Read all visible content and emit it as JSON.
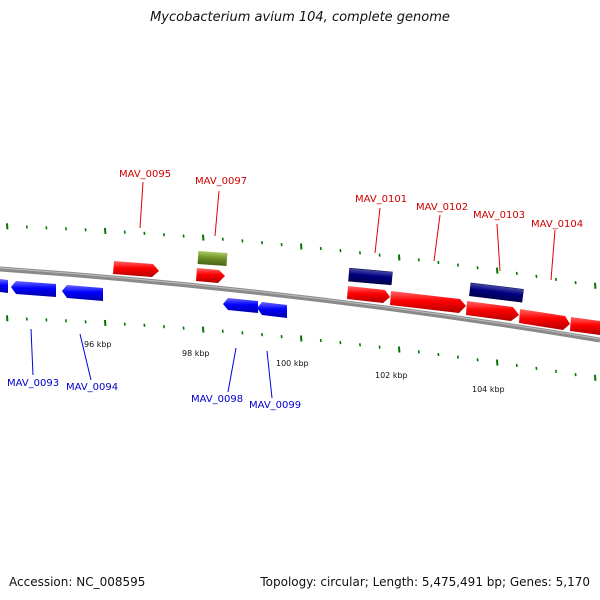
{
  "title": "Mycobacterium avium 104, complete genome",
  "footer": {
    "accession": "Accession: NC_008595",
    "summary": "Topology: circular; Length: 5,475,491 bp; Genes: 5,170"
  },
  "colors": {
    "forward_gene": "#ff0000",
    "reverse_gene": "#0000ff",
    "dark_feature": "#000080",
    "olive_feature": "#6b8e23",
    "backbone": "#808080",
    "ticks": "#007700",
    "forward_label": "#cc0000",
    "reverse_label": "#0000cc"
  },
  "scale_labels": [
    "96 kbp",
    "98 kbp",
    "100 kbp",
    "102 kbp",
    "104 kbp"
  ],
  "forward_labels": [
    "MAV_0095",
    "MAV_0097",
    "MAV_0101",
    "MAV_0102",
    "MAV_0103",
    "MAV_0104"
  ],
  "reverse_labels": [
    "MAV_0093",
    "MAV_0094",
    "MAV_0098",
    "MAV_0099"
  ]
}
